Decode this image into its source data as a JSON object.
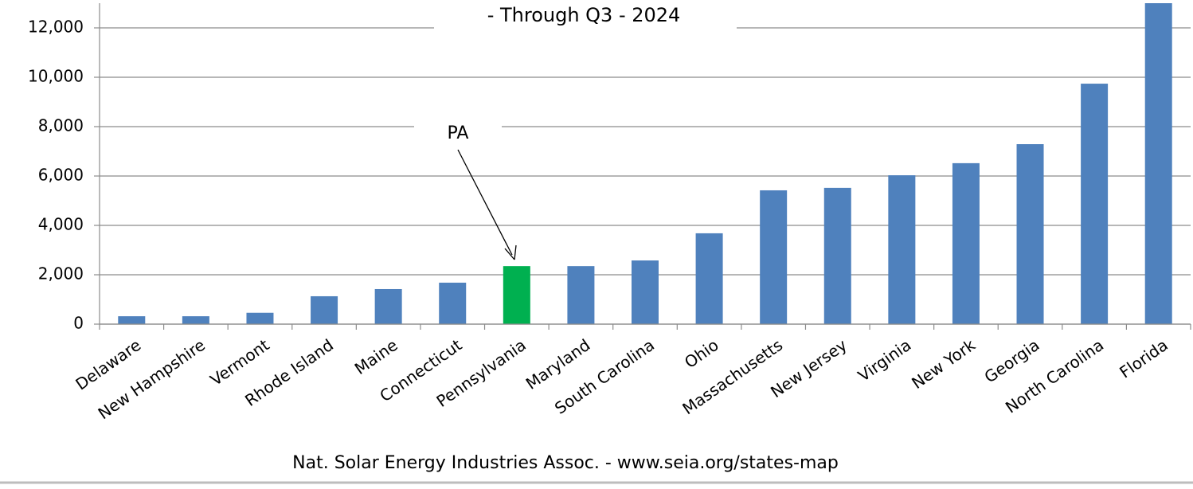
{
  "chart_data": {
    "type": "bar",
    "title": "- Through Q3 - 2024",
    "annotation": "PA",
    "source": "Nat. Solar Energy Industries Assoc.  - www.seia.org/states-map",
    "categories": [
      "Delaware",
      "New Hampshire",
      "Vermont",
      "Rhode Island",
      "Maine",
      "Connecticut",
      "Pennsylvania",
      "Maryland",
      "South Carolina",
      "Ohio",
      "Massachusetts",
      "New Jersey",
      "Virginia",
      "New York",
      "Georgia",
      "North Carolina",
      "Florida"
    ],
    "values": [
      320,
      320,
      460,
      1130,
      1420,
      1680,
      2350,
      2350,
      2580,
      3680,
      5420,
      5520,
      6030,
      6520,
      7290,
      9740,
      13000
    ],
    "colors": [
      "#4f81bd",
      "#4f81bd",
      "#4f81bd",
      "#4f81bd",
      "#4f81bd",
      "#4f81bd",
      "#00b050",
      "#4f81bd",
      "#4f81bd",
      "#4f81bd",
      "#4f81bd",
      "#4f81bd",
      "#4f81bd",
      "#4f81bd",
      "#4f81bd",
      "#4f81bd",
      "#4f81bd"
    ],
    "ylim": [
      0,
      13000
    ],
    "yticks": [
      0,
      {
        "value": 2000,
        "label": "2,000"
      },
      {
        "value": 4000,
        "label": "4,000"
      },
      {
        "value": 6000,
        "label": "6,000"
      },
      {
        "value": 8000,
        "label": "8,000"
      },
      {
        "value": 10000,
        "label": "10,000"
      },
      {
        "value": 12000,
        "label": "12,000"
      }
    ],
    "grid": true
  }
}
